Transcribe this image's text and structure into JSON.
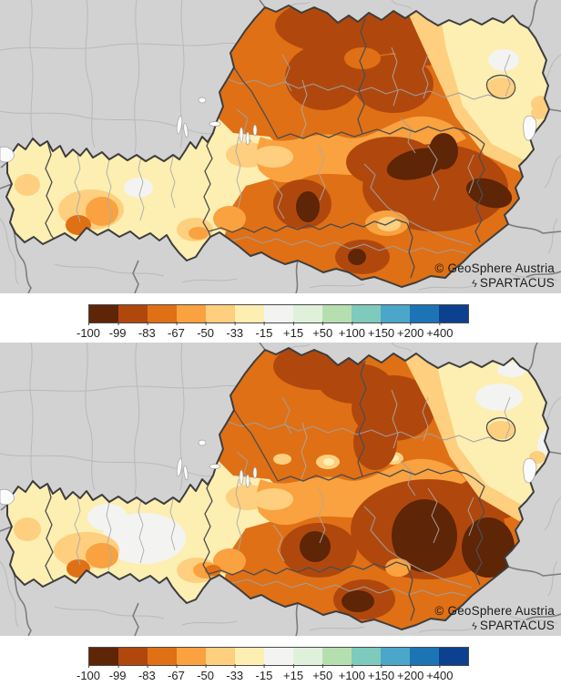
{
  "palette": {
    "labels": [
      "-100",
      "-99",
      "-83",
      "-67",
      "-50",
      "-33",
      "-15",
      "+15",
      "+50",
      "+100",
      "+150",
      "+200",
      "+400"
    ],
    "colors": [
      "#5e2506",
      "#b0480e",
      "#e07015",
      "#f9a23f",
      "#fdcf7e",
      "#fdeeb2",
      "#f3f3f1",
      "#dff1da",
      "#b6dfb0",
      "#7ecabd",
      "#4ba6ca",
      "#1d74b5",
      "#0c418f"
    ]
  },
  "map_background": "#d2d2d2",
  "maps": [
    {
      "credit_line1": "© GeoSphere Austria",
      "credit_line2": "SPARTACUS"
    },
    {
      "credit_line1": "© GeoSphere Austria",
      "credit_line2": "SPARTACUS"
    }
  ],
  "icons": {
    "spartacus_glyph": "ϟ"
  }
}
